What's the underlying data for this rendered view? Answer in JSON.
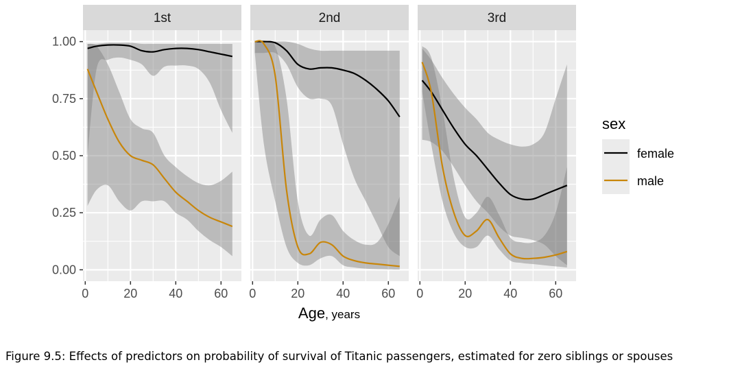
{
  "caption": "Figure 9.5: Effects of predictors on probability of survival of Titanic passengers, estimated for zero siblings or spouses",
  "chart_data": {
    "type": "line",
    "facets": [
      "1st",
      "2nd",
      "3rd"
    ],
    "xlabel": "Age",
    "xlabel_sub": ", years",
    "ylabel": "",
    "xlim": [
      -1,
      69
    ],
    "ylim": [
      -0.05,
      1.05
    ],
    "x_ticks": [
      0,
      20,
      40,
      60
    ],
    "y_ticks": [
      0.0,
      0.25,
      0.5,
      0.75,
      1.0
    ],
    "y_tick_labels": [
      "0.00",
      "0.25",
      "0.50",
      "0.75",
      "1.00"
    ],
    "grid": true,
    "legend": {
      "title": "sex",
      "position": "right",
      "entries": [
        "female",
        "male"
      ]
    },
    "colors": {
      "female": "#000000",
      "male": "#c8860a",
      "band": "#808080",
      "panel": "#ebebeb",
      "strip": "#d9d9d9"
    },
    "x": [
      1,
      5,
      10,
      15,
      20,
      25,
      30,
      35,
      40,
      45,
      50,
      55,
      60,
      65
    ],
    "panels": [
      {
        "name": "1st",
        "series": [
          {
            "name": "female",
            "values": [
              0.97,
              0.98,
              0.985,
              0.985,
              0.98,
              0.96,
              0.955,
              0.965,
              0.97,
              0.97,
              0.965,
              0.955,
              0.945,
              0.935
            ],
            "lower": [
              0.5,
              0.88,
              0.92,
              0.93,
              0.92,
              0.9,
              0.85,
              0.89,
              0.895,
              0.895,
              0.88,
              0.82,
              0.7,
              0.6
            ],
            "upper": [
              0.99,
              0.99,
              0.995,
              0.995,
              0.995,
              0.99,
              0.99,
              0.99,
              0.99,
              0.99,
              0.99,
              0.99,
              0.99,
              0.99
            ]
          },
          {
            "name": "male",
            "values": [
              0.88,
              0.78,
              0.66,
              0.56,
              0.5,
              0.48,
              0.46,
              0.4,
              0.34,
              0.3,
              0.26,
              0.23,
              0.21,
              0.19
            ],
            "lower": [
              0.28,
              0.35,
              0.37,
              0.3,
              0.26,
              0.3,
              0.3,
              0.3,
              0.25,
              0.22,
              0.17,
              0.13,
              0.1,
              0.06
            ],
            "upper": [
              0.99,
              0.98,
              0.9,
              0.78,
              0.66,
              0.62,
              0.6,
              0.5,
              0.45,
              0.41,
              0.38,
              0.37,
              0.39,
              0.43
            ]
          }
        ]
      },
      {
        "name": "2nd",
        "series": [
          {
            "name": "female",
            "values": [
              1.0,
              1.0,
              0.995,
              0.96,
              0.9,
              0.88,
              0.885,
              0.885,
              0.875,
              0.86,
              0.83,
              0.79,
              0.74,
              0.67
            ],
            "lower": [
              0.95,
              0.95,
              0.95,
              0.9,
              0.8,
              0.75,
              0.75,
              0.72,
              0.55,
              0.4,
              0.3,
              0.2,
              0.1,
              0.06
            ],
            "upper": [
              1.0,
              1.0,
              1.0,
              1.0,
              0.99,
              0.97,
              0.96,
              0.96,
              0.96,
              0.96,
              0.96,
              0.96,
              0.96,
              0.96
            ]
          },
          {
            "name": "male",
            "values": [
              1.0,
              0.99,
              0.85,
              0.35,
              0.1,
              0.07,
              0.12,
              0.11,
              0.06,
              0.04,
              0.03,
              0.025,
              0.02,
              0.015
            ],
            "lower": [
              0.95,
              0.55,
              0.3,
              0.1,
              0.03,
              0.02,
              0.05,
              0.06,
              0.02,
              0.01,
              0.005,
              0.003,
              0.002,
              0.001
            ],
            "upper": [
              1.0,
              1.0,
              0.98,
              0.75,
              0.3,
              0.15,
              0.22,
              0.24,
              0.17,
              0.13,
              0.11,
              0.12,
              0.2,
              0.32
            ]
          }
        ]
      },
      {
        "name": "3rd",
        "series": [
          {
            "name": "female",
            "values": [
              0.83,
              0.78,
              0.7,
              0.62,
              0.55,
              0.5,
              0.44,
              0.38,
              0.33,
              0.31,
              0.31,
              0.33,
              0.35,
              0.37
            ],
            "lower": [
              0.57,
              0.56,
              0.52,
              0.45,
              0.37,
              0.3,
              0.25,
              0.19,
              0.15,
              0.14,
              0.13,
              0.11,
              0.06,
              0.02
            ],
            "upper": [
              0.97,
              0.92,
              0.84,
              0.77,
              0.71,
              0.66,
              0.6,
              0.57,
              0.55,
              0.54,
              0.55,
              0.6,
              0.75,
              0.9
            ]
          },
          {
            "name": "male",
            "values": [
              0.91,
              0.78,
              0.45,
              0.25,
              0.15,
              0.17,
              0.22,
              0.14,
              0.07,
              0.05,
              0.05,
              0.055,
              0.065,
              0.08
            ],
            "lower": [
              0.78,
              0.55,
              0.3,
              0.16,
              0.1,
              0.1,
              0.15,
              0.09,
              0.04,
              0.03,
              0.025,
              0.02,
              0.015,
              0.01
            ],
            "upper": [
              0.98,
              0.93,
              0.7,
              0.4,
              0.23,
              0.25,
              0.32,
              0.24,
              0.14,
              0.12,
              0.12,
              0.15,
              0.25,
              0.45
            ]
          }
        ]
      }
    ]
  }
}
